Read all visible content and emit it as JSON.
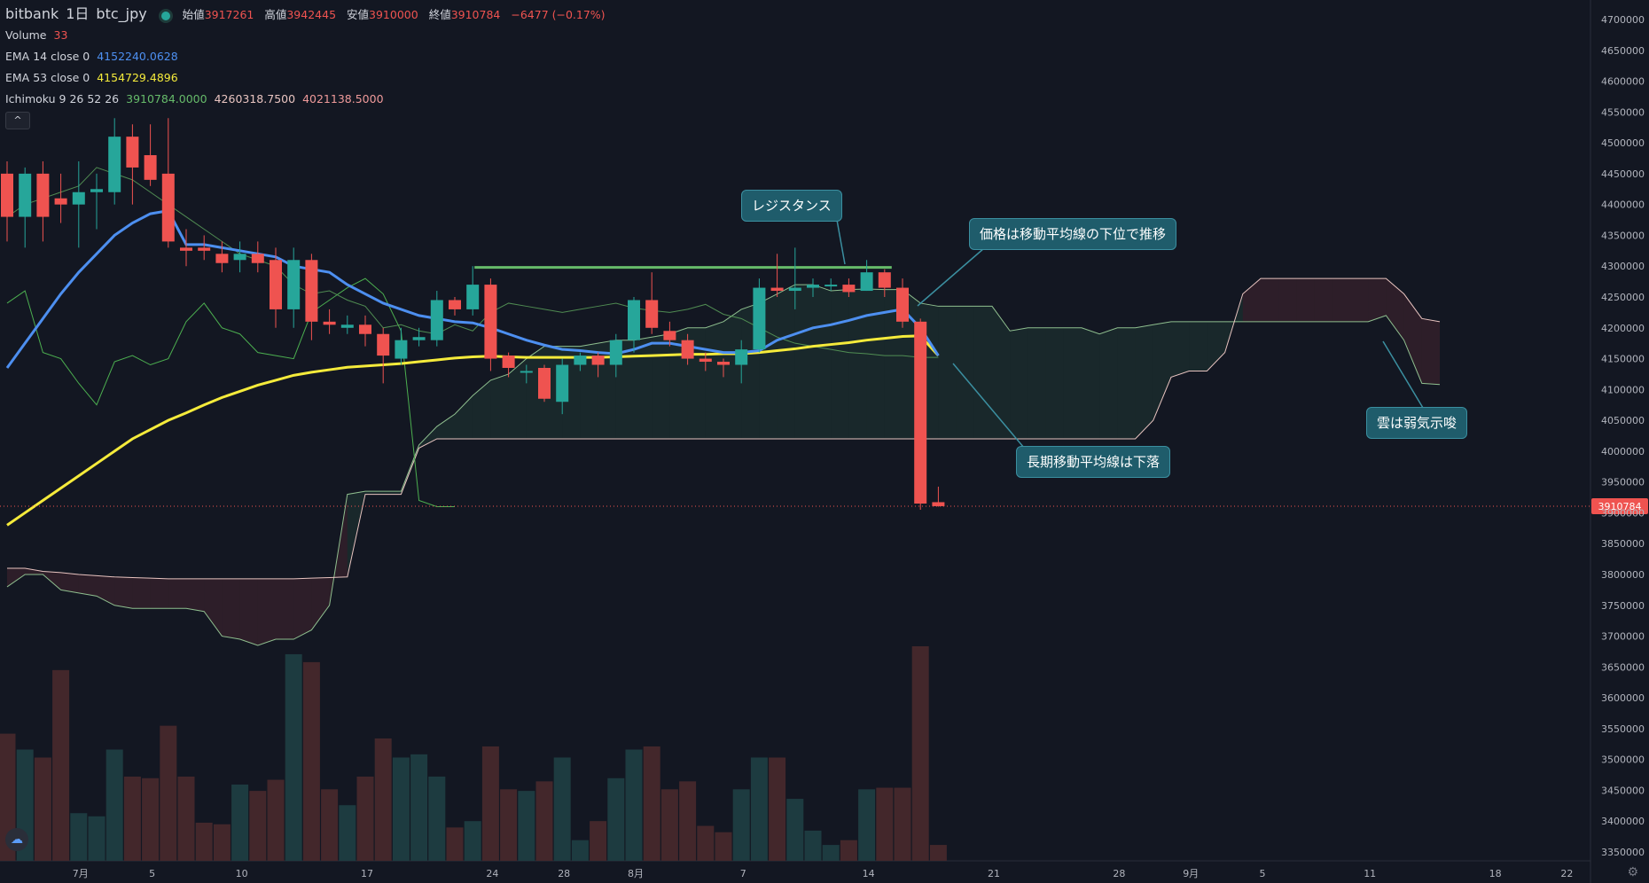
{
  "symbol": {
    "exchange": "bitbank",
    "interval": "1日",
    "pair": "btc_jpy"
  },
  "ohlc": {
    "open_label": "始値",
    "open": "3917261",
    "high_label": "高値",
    "high": "3942445",
    "low_label": "安値",
    "low": "3910000",
    "close_label": "終値",
    "close": "3910784",
    "change": "−6477 (−0.17%)"
  },
  "indicators": {
    "volume": {
      "label": "Volume",
      "value": "33"
    },
    "ema14": {
      "label": "EMA 14 close 0",
      "value": "4152240.0628"
    },
    "ema53": {
      "label": "EMA 53 close 0",
      "value": "4154729.4896"
    },
    "ichimoku": {
      "label": "Ichimoku 9 26 52 26",
      "v1": "3910784.0000",
      "v2": "4260318.7500",
      "v3": "4021138.5000"
    }
  },
  "colors": {
    "up": "#26a69a",
    "down": "#ef5350",
    "ema14": "#4d8ff0",
    "ema53": "#f5eb3b",
    "tenkan": "#66bb6a",
    "kijun": "#e8c4c0",
    "bg": "#131722",
    "grid": "#2a2e39"
  },
  "icons": {
    "collapse": "chevron-up-icon",
    "logo": "tradingview-logo-icon",
    "settings": "gear-icon"
  },
  "annotations": [
    {
      "text": "レジスタンス"
    },
    {
      "text": "価格は移動平均線の下位で推移"
    },
    {
      "text": "長期移動平均線は下落"
    },
    {
      "text": "雲は弱気示唆"
    }
  ],
  "chart_data": {
    "type": "candlestick",
    "y_range": [
      3310000,
      4740000
    ],
    "y_ticks": [
      4700000,
      4650000,
      4600000,
      4550000,
      4500000,
      4450000,
      4400000,
      4350000,
      4300000,
      4250000,
      4200000,
      4150000,
      4100000,
      4050000,
      4000000,
      3950000,
      3900000,
      3850000,
      3800000,
      3750000,
      3700000,
      3650000,
      3600000,
      3550000,
      3500000,
      3450000,
      3400000,
      3350000
    ],
    "price_label": "3910784",
    "price_value": 3910784,
    "x_ticks": [
      {
        "label": "7月",
        "i": 4
      },
      {
        "label": "5",
        "i": 8
      },
      {
        "label": "10",
        "i": 13
      },
      {
        "label": "17",
        "i": 20
      },
      {
        "label": "24",
        "i": 27
      },
      {
        "label": "28",
        "i": 31
      },
      {
        "label": "8月",
        "i": 35
      },
      {
        "label": "7",
        "i": 41
      },
      {
        "label": "14",
        "i": 48
      },
      {
        "label": "21",
        "i": 55
      },
      {
        "label": "28",
        "i": 62
      },
      {
        "label": "9月",
        "i": 66
      },
      {
        "label": "5",
        "i": 70
      },
      {
        "label": "11",
        "i": 76
      },
      {
        "label": "18",
        "i": 83
      },
      {
        "label": "22",
        "i": 87
      }
    ],
    "candles": [
      [
        4450000,
        4380000,
        4470000,
        4340000
      ],
      [
        4380000,
        4450000,
        4460000,
        4330000
      ],
      [
        4450000,
        4380000,
        4470000,
        4340000
      ],
      [
        4410000,
        4400000,
        4450000,
        4370000
      ],
      [
        4400000,
        4420000,
        4470000,
        4330000
      ],
      [
        4420000,
        4425000,
        4450000,
        4360000
      ],
      [
        4420000,
        4510000,
        4540000,
        4400000
      ],
      [
        4510000,
        4460000,
        4530000,
        4400000
      ],
      [
        4480000,
        4440000,
        4530000,
        4430000
      ],
      [
        4450000,
        4340000,
        4540000,
        4330000
      ],
      [
        4330000,
        4325000,
        4360000,
        4300000
      ],
      [
        4330000,
        4325000,
        4350000,
        4310000
      ],
      [
        4320000,
        4305000,
        4340000,
        4290000
      ],
      [
        4310000,
        4320000,
        4340000,
        4290000
      ],
      [
        4320000,
        4305000,
        4340000,
        4290000
      ],
      [
        4310000,
        4230000,
        4330000,
        4200000
      ],
      [
        4230000,
        4310000,
        4330000,
        4200000
      ],
      [
        4310000,
        4210000,
        4320000,
        4180000
      ],
      [
        4210000,
        4205000,
        4230000,
        4190000
      ],
      [
        4200000,
        4205000,
        4220000,
        4190000
      ],
      [
        4205000,
        4190000,
        4220000,
        4170000
      ],
      [
        4190000,
        4155000,
        4200000,
        4110000
      ],
      [
        4150000,
        4180000,
        4200000,
        4140000
      ],
      [
        4180000,
        4185000,
        4200000,
        4170000
      ],
      [
        4180000,
        4245000,
        4260000,
        4170000
      ],
      [
        4245000,
        4230000,
        4250000,
        4220000
      ],
      [
        4230000,
        4270000,
        4300000,
        4220000
      ],
      [
        4270000,
        4150000,
        4280000,
        4130000
      ],
      [
        4155000,
        4135000,
        4160000,
        4120000
      ],
      [
        4130000,
        4130000,
        4140000,
        4110000
      ],
      [
        4135000,
        4085000,
        4140000,
        4080000
      ],
      [
        4080000,
        4140000,
        4150000,
        4060000
      ],
      [
        4140000,
        4155000,
        4160000,
        4130000
      ],
      [
        4155000,
        4140000,
        4160000,
        4120000
      ],
      [
        4140000,
        4180000,
        4190000,
        4120000
      ],
      [
        4180000,
        4245000,
        4250000,
        4160000
      ],
      [
        4245000,
        4200000,
        4290000,
        4190000
      ],
      [
        4195000,
        4180000,
        4210000,
        4170000
      ],
      [
        4180000,
        4150000,
        4190000,
        4140000
      ],
      [
        4150000,
        4145000,
        4160000,
        4130000
      ],
      [
        4145000,
        4140000,
        4150000,
        4120000
      ],
      [
        4140000,
        4165000,
        4180000,
        4110000
      ],
      [
        4165000,
        4265000,
        4280000,
        4160000
      ],
      [
        4265000,
        4260000,
        4320000,
        4250000
      ],
      [
        4260000,
        4265000,
        4330000,
        4230000
      ],
      [
        4265000,
        4270000,
        4280000,
        4250000
      ],
      [
        4270000,
        4270000,
        4280000,
        4260000
      ],
      [
        4270000,
        4258000,
        4280000,
        4250000
      ],
      [
        4260000,
        4290000,
        4310000,
        4260000
      ],
      [
        4290000,
        4265000,
        4295000,
        4250000
      ],
      [
        4265000,
        4210000,
        4280000,
        4200000
      ],
      [
        4210000,
        3915000,
        4215000,
        3905000
      ],
      [
        3917261,
        3910784,
        3942445,
        3910000
      ]
    ],
    "volume": [
      8,
      7,
      6.5,
      12,
      3,
      2.8,
      7,
      5.3,
      5.2,
      8.5,
      5.3,
      2.4,
      2.3,
      4.8,
      4.4,
      5.1,
      13,
      12.5,
      4.5,
      3.5,
      5.3,
      7.7,
      6.5,
      6.7,
      5.3,
      2.1,
      2.5,
      7.2,
      4.5,
      4.4,
      5,
      6.5,
      1.3,
      2.5,
      5.2,
      7,
      7.2,
      4.5,
      5,
      2.2,
      1.8,
      4.5,
      6.5,
      6.5,
      3.9,
      1.9,
      1,
      1.3,
      4.5,
      4.6,
      4.6,
      13.5,
      1
    ],
    "ema14": [
      4135000,
      4175000,
      4215000,
      4255000,
      4290000,
      4320000,
      4350000,
      4370000,
      4385000,
      4390000,
      4335000,
      4335000,
      4330000,
      4325000,
      4320000,
      4315000,
      4300000,
      4295000,
      4290000,
      4270000,
      4255000,
      4240000,
      4230000,
      4220000,
      4215000,
      4210000,
      4208000,
      4200000,
      4190000,
      4180000,
      4172000,
      4165000,
      4163000,
      4160000,
      4158000,
      4165000,
      4175000,
      4175000,
      4170000,
      4165000,
      4160000,
      4160000,
      4163000,
      4180000,
      4190000,
      4200000,
      4205000,
      4212000,
      4220000,
      4225000,
      4230000,
      4200000,
      4155000
    ],
    "ema53": [
      3880000,
      3900000,
      3920000,
      3940000,
      3960000,
      3980000,
      4000000,
      4020000,
      4035000,
      4050000,
      4062000,
      4075000,
      4087000,
      4097000,
      4107000,
      4115000,
      4123000,
      4128000,
      4132000,
      4136000,
      4138000,
      4140000,
      4142000,
      4145000,
      4148000,
      4151000,
      4153000,
      4154000,
      4153000,
      4152000,
      4152000,
      4152000,
      4152000,
      4152000,
      4153000,
      4154000,
      4155000,
      4156000,
      4157000,
      4157000,
      4158000,
      4158000,
      4160000,
      4163000,
      4166000,
      4170000,
      4173000,
      4176000,
      4180000,
      4183000,
      4186000,
      4187000,
      4155000
    ],
    "tenkan": [
      4240000,
      4260000,
      4160000,
      4150000,
      4110000,
      4075000,
      4145000,
      4155000,
      4140000,
      4150000,
      4210000,
      4240000,
      4200000,
      4190000,
      4160000,
      4155000,
      4150000,
      4225000,
      4245000,
      4265000,
      4280000,
      4255000,
      4195000,
      3920000,
      3910000,
      3910000
    ],
    "kijun": [
      3810000,
      3810000,
      3805000,
      3803000,
      3800000,
      3798000,
      3796000,
      3795000,
      3794000,
      3793000,
      3793000,
      3793000,
      3793000,
      3793000,
      3793000,
      3793000,
      3793000,
      3794000,
      3795000,
      3796000,
      3930000,
      3930000,
      3930000,
      4005000,
      4020000,
      4020000,
      4020000,
      4020000,
      4020000,
      4020000,
      4020000,
      4020000,
      4020000,
      4020000,
      4020000,
      4020000,
      4020000,
      4020000,
      4020000,
      4020000,
      4020000,
      4020000,
      4020000,
      4020000,
      4020000,
      4020000,
      4020000,
      4020000,
      4020000,
      4020000,
      4020000,
      4020000,
      4020000,
      4020000,
      4020000,
      4020000,
      4020000,
      4020000,
      4020000,
      4020000,
      4020000,
      4020000,
      4020000,
      4020000,
      4050000,
      4120000,
      4130000,
      4130000,
      4160000,
      4255000,
      4280000,
      4280000,
      4280000,
      4280000,
      4280000,
      4280000,
      4280000,
      4280000,
      4255000,
      4215000,
      4210000
    ],
    "senkou_a": [
      3780000,
      3800000,
      3800000,
      3775000,
      3770000,
      3765000,
      3750000,
      3745000,
      3745000,
      3745000,
      3745000,
      3740000,
      3700000,
      3695000,
      3685000,
      3695000,
      3695000,
      3710000,
      3750000,
      3930000,
      3935000,
      3935000,
      3935000,
      4010000,
      4040000,
      4060000,
      4090000,
      4115000,
      4125000,
      4150000,
      4170000,
      4170000,
      4170000,
      4175000,
      4180000,
      4180000,
      4185000,
      4190000,
      4200000,
      4200000,
      4210000,
      4230000,
      4240000,
      4255000,
      4270000,
      4270000,
      4260000,
      4262000,
      4263000,
      4262000,
      4262000,
      4240000,
      4235000,
      4235000,
      4235000,
      4235000,
      4195000,
      4200000,
      4200000,
      4200000,
      4200000,
      4190000,
      4200000,
      4200000,
      4205000,
      4210000,
      4210000,
      4210000,
      4210000,
      4210000,
      4210000,
      4210000,
      4210000,
      4210000,
      4210000,
      4210000,
      4210000,
      4220000,
      4180000,
      4110000,
      4108000
    ],
    "chikou": [
      4380000,
      4400000,
      4410000,
      4420000,
      4430000,
      4460000,
      4450000,
      4440000,
      4420000,
      4400000,
      4380000,
      4360000,
      4340000,
      4320000,
      4310000,
      4300000,
      4270000,
      4255000,
      4260000,
      4245000,
      4235000,
      4200000,
      4205000,
      4195000,
      4190000,
      4205000,
      4195000,
      4225000,
      4240000,
      4235000,
      4230000,
      4225000,
      4230000,
      4235000,
      4240000,
      4232000,
      4228000,
      4225000,
      4230000,
      4238000,
      4222000,
      4215000,
      4200000,
      4185000,
      4175000,
      4170000,
      4165000,
      4160000,
      4158000,
      4155000,
      4155000,
      4152000,
      4152000
    ],
    "resistance": {
      "value": 4298000,
      "from": 26,
      "to": 49
    }
  }
}
